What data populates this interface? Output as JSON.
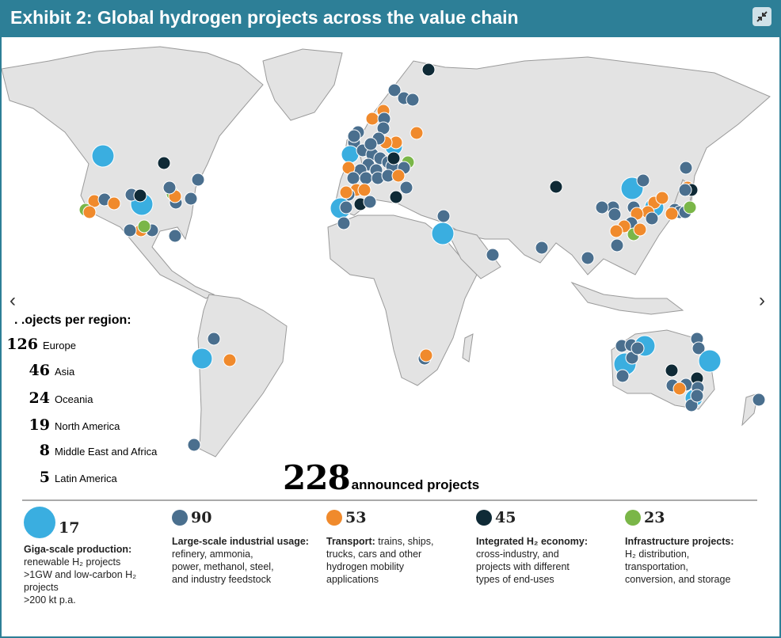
{
  "header": {
    "title": "Exhibit 2: Global hydrogen projects across the value chain",
    "collapse_icon": "collapse-arrows-icon"
  },
  "navigation": {
    "prev": "‹",
    "next": "›"
  },
  "regions": {
    "heading": ". .ojects per region:",
    "items": [
      {
        "count": "126",
        "label": "Europe"
      },
      {
        "count": "46",
        "label": "Asia"
      },
      {
        "count": "24",
        "label": "Oceania"
      },
      {
        "count": "19",
        "label": "North America"
      },
      {
        "count": "8",
        "label": "Middle East and Africa"
      },
      {
        "count": "5",
        "label": "Latin America"
      }
    ]
  },
  "total": {
    "count": "228",
    "label": "announced projects"
  },
  "categories": [
    {
      "key": "g",
      "count": "17",
      "title": "Giga-scale production:",
      "desc": [
        "renewable H₂ projects",
        ">1GW and low-carbon H₂",
        "projects",
        ">200 kt p.a."
      ],
      "color": "#3aaee0"
    },
    {
      "key": "i",
      "count": "90",
      "title": "Large-scale industrial usage:",
      "desc": [
        "refinery, ammonia,",
        "power, methanol, steel,",
        "and industry feedstock"
      ],
      "color": "#4a6f8e"
    },
    {
      "key": "t",
      "count": "53",
      "title": "Transport:",
      "desc": [
        "trains, ships,",
        "trucks, cars and other",
        "hydrogen mobility",
        "applications"
      ],
      "color": "#f08a2c"
    },
    {
      "key": "e",
      "count": "45",
      "title": "Integrated H₂ economy:",
      "desc": [
        "cross-industry, and",
        "projects with different",
        "types of end-uses"
      ],
      "color": "#0f2a36"
    },
    {
      "key": "f",
      "count": "23",
      "title": "Infrastructure projects:",
      "desc": [
        "H₂ distribution,",
        "transportation,",
        "conversion, and storage"
      ],
      "color": "#7ab648"
    }
  ],
  "colors": {
    "header": "#2d7f97",
    "land": "#e3e3e3",
    "border": "#9a9a9a"
  }
}
